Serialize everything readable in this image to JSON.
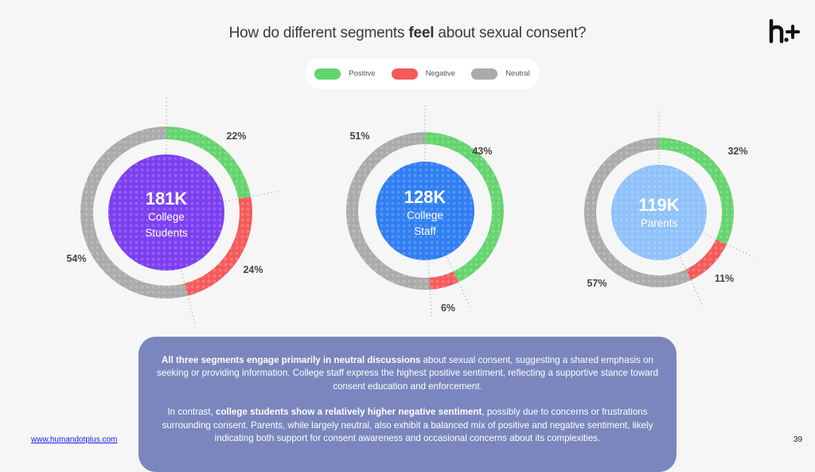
{
  "title": {
    "pre": "How do different segments ",
    "bold": "feel",
    "post": " about sexual consent?"
  },
  "logo": {
    "icon": "h-plus-logo"
  },
  "legend": [
    {
      "label": "Positive",
      "color": "#64d46e"
    },
    {
      "label": "Negative",
      "color": "#f55a5a"
    },
    {
      "label": "Neutral",
      "color": "#aaaaaa"
    }
  ],
  "chart_data": {
    "type": "pie",
    "title": "How do different segments feel about sexual consent?",
    "legend": [
      "Positive",
      "Negative",
      "Neutral"
    ],
    "legend_position": "top-center",
    "series_order": [
      "Positive",
      "Negative",
      "Neutral"
    ],
    "charts": [
      {
        "segment": "College Students",
        "total_label": "181K",
        "label_lines": [
          "College",
          "Students"
        ],
        "center_color": "#7b3ef0",
        "values": {
          "Positive": 22,
          "Negative": 24,
          "Neutral": 54
        }
      },
      {
        "segment": "College Staff",
        "total_label": "128K",
        "label_lines": [
          "College",
          "Staff"
        ],
        "center_color": "#2f7ef2",
        "values": {
          "Positive": 43,
          "Negative": 6,
          "Neutral": 51
        }
      },
      {
        "segment": "Parents",
        "total_label": "119K",
        "label_lines": [
          "Parents"
        ],
        "center_color": "#8fc1fa",
        "values": {
          "Positive": 32,
          "Negative": 11,
          "Neutral": 57
        }
      }
    ],
    "units": "%"
  },
  "summary": {
    "p1_bold": "All three segments engage primarily in neutral discussions",
    "p1_rest": " about sexual consent, suggesting a shared emphasis on seeking or providing information. College staff express the highest positive sentiment, reflecting a supportive stance toward consent education and enforcement.",
    "p2_pre": "In contrast, ",
    "p2_bold": "college students show a relatively higher negative sentiment",
    "p2_rest": ", possibly due to concerns or frustrations surrounding consent. Parents, while largely neutral, also exhibit a balanced mix of positive and negative sentiment, likely indicating both support for consent awareness and occasional concerns about its complexities."
  },
  "footer": {
    "link": "www.humandotplus.com",
    "page": "39"
  }
}
